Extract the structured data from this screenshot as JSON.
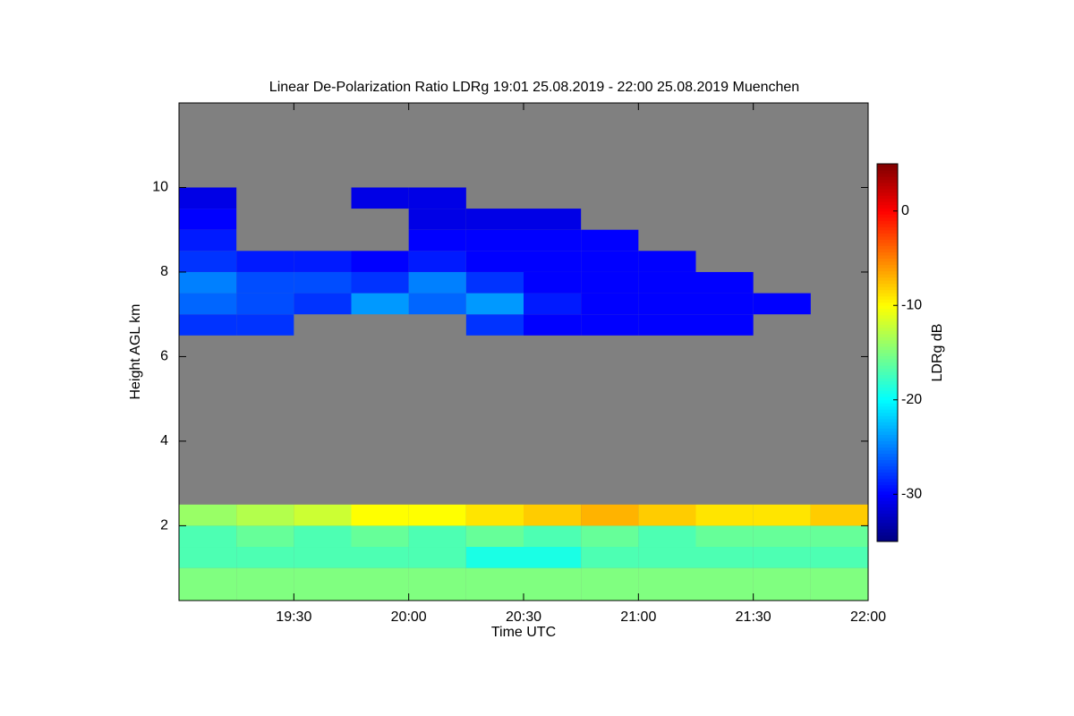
{
  "chart_data": {
    "type": "heatmap",
    "title": "Linear De-Polarization Ratio LDRg   19:01 25.08.2019 - 22:00 25.08.2019 Muenchen",
    "xlabel": "Time UTC",
    "ylabel": "Height AGL km",
    "colorbar_label": "LDRg dB",
    "colormap": "jet",
    "background": "#808080",
    "xlim": [
      1140,
      1320
    ],
    "xticks": [
      {
        "value": 1170,
        "label": "19:30"
      },
      {
        "value": 1200,
        "label": "20:00"
      },
      {
        "value": 1230,
        "label": "20:30"
      },
      {
        "value": 1260,
        "label": "21:00"
      },
      {
        "value": 1290,
        "label": "21:30"
      },
      {
        "value": 1320,
        "label": "22:00"
      }
    ],
    "ylim": [
      0.23,
      12
    ],
    "yticks": [
      2,
      4,
      6,
      8,
      10
    ],
    "clim": [
      -35,
      5
    ],
    "cticks": [
      0,
      -10,
      -20,
      -30
    ],
    "x_edges": [
      1140,
      1155,
      1170,
      1185,
      1200,
      1215,
      1230,
      1245,
      1260,
      1275,
      1290,
      1305,
      1320
    ],
    "y_edges": [
      0.23,
      1,
      1.5,
      2,
      2.5,
      3,
      6.5,
      7,
      7.5,
      8,
      8.5,
      9,
      9.5,
      10,
      12
    ],
    "z": [
      [
        -15,
        -15,
        -15,
        -15,
        -15,
        -15,
        -15,
        -15,
        -15,
        -15,
        -15,
        -15
      ],
      [
        -17,
        -17,
        -17,
        -17,
        -17,
        -19,
        -19,
        -17,
        -17,
        -17,
        -17,
        -17
      ],
      [
        -17,
        -16,
        -17,
        -16,
        -17,
        -16,
        -17,
        -16,
        -17,
        -16,
        -16,
        -16
      ],
      [
        -14,
        -13,
        -12,
        -10,
        -10,
        -9,
        -8,
        -7,
        -8,
        -9,
        -9,
        -8
      ],
      [
        null,
        null,
        null,
        null,
        null,
        null,
        null,
        null,
        null,
        null,
        null,
        null
      ],
      [
        null,
        null,
        null,
        null,
        null,
        null,
        null,
        null,
        null,
        null,
        null,
        null
      ],
      [
        -28,
        -28,
        null,
        null,
        null,
        -28,
        -30,
        -30,
        -30,
        -30,
        null,
        null
      ],
      [
        -26,
        -27,
        -28,
        -24,
        -26,
        -24,
        -29,
        -30,
        -30,
        -30,
        -30,
        null
      ],
      [
        -25,
        -27,
        -27,
        -28,
        -25,
        -28,
        -30,
        -30,
        -30,
        -30,
        null,
        null
      ],
      [
        -28,
        -29,
        -29,
        -30,
        -29,
        -30,
        -30,
        -30,
        -30,
        null,
        null,
        null
      ],
      [
        -29,
        null,
        null,
        null,
        -30,
        -30,
        -30,
        -30,
        null,
        null,
        null,
        null
      ],
      [
        -30,
        null,
        null,
        null,
        -31,
        -31,
        -31,
        null,
        null,
        null,
        null,
        null
      ],
      [
        -31,
        null,
        null,
        -31,
        -31,
        null,
        null,
        null,
        null,
        null,
        null,
        null
      ],
      [
        null,
        null,
        null,
        null,
        null,
        null,
        null,
        null,
        null,
        null,
        null,
        null
      ]
    ]
  }
}
